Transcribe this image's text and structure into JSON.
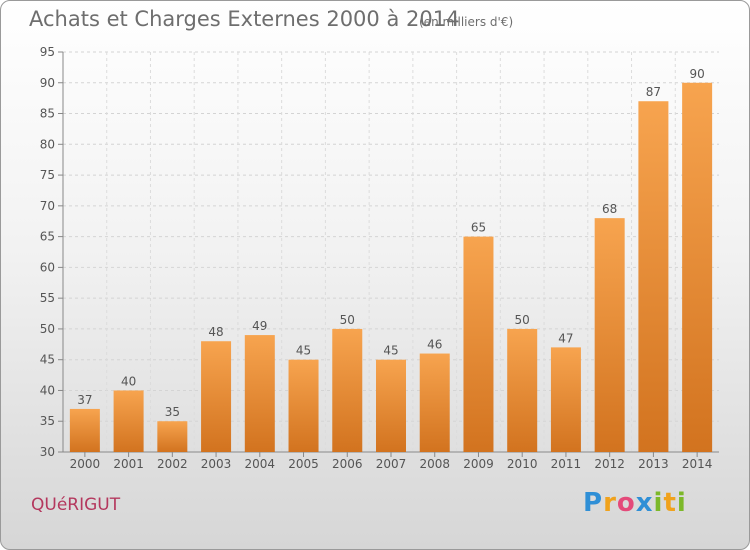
{
  "header": {
    "title": "Achats et Charges Externes 2000 à 2014",
    "unit": "(en milliers d'€)"
  },
  "footer": {
    "town": "QUéRIGUT",
    "brand": {
      "letters": [
        {
          "ch": "P",
          "color": "#2f8fd6"
        },
        {
          "ch": "r",
          "color": "#f0a21c"
        },
        {
          "ch": "o",
          "color": "#e44a7a"
        },
        {
          "ch": "x",
          "color": "#2f8fd6"
        },
        {
          "ch": "i",
          "color": "#7cb829"
        },
        {
          "ch": "t",
          "color": "#f0a21c"
        },
        {
          "ch": "i",
          "color": "#7cb829"
        }
      ]
    }
  },
  "chart_data": {
    "type": "bar",
    "categories": [
      "2000",
      "2001",
      "2002",
      "2003",
      "2004",
      "2005",
      "2006",
      "2007",
      "2008",
      "2009",
      "2010",
      "2011",
      "2012",
      "2013",
      "2014"
    ],
    "values": [
      37,
      40,
      35,
      48,
      49,
      45,
      50,
      45,
      46,
      65,
      50,
      47,
      68,
      87,
      90
    ],
    "ylim": [
      30,
      95
    ],
    "yticks": [
      30,
      35,
      40,
      45,
      50,
      55,
      60,
      65,
      70,
      75,
      80,
      85,
      90,
      95
    ],
    "grid": true,
    "bar_color": "#f0963c",
    "data_labels": true
  }
}
